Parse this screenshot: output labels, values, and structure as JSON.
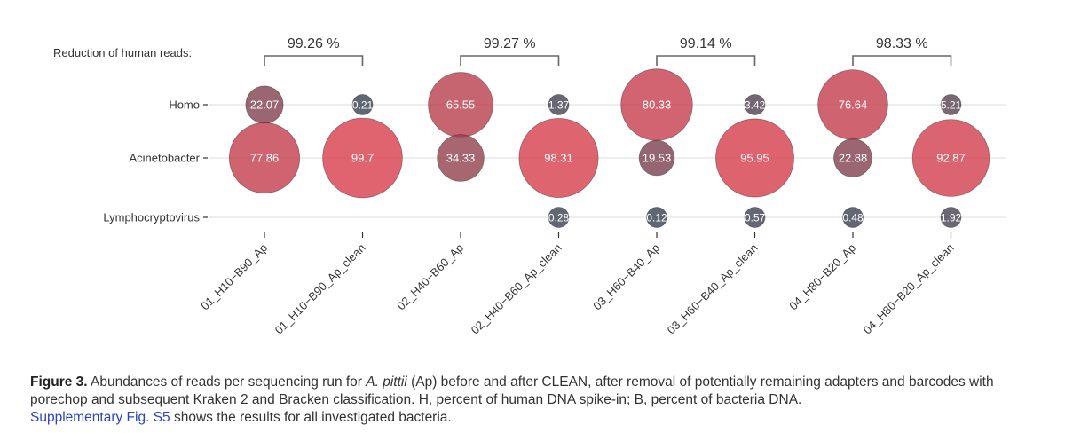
{
  "chart_data": {
    "type": "bubble",
    "reduction_label": "Reduction of human reads:",
    "runs": [
      "01_H10−B90_Ap",
      "01_H10−B90_Ap_clean",
      "02_H40−B60_Ap",
      "02_H40−B60_Ap_clean",
      "03_H60−B40_Ap",
      "03_H60−B40_Ap_clean",
      "04_H80−B20_Ap",
      "04_H80−B20_Ap_clean"
    ],
    "taxa": [
      "Homo",
      "Acinetobacter",
      "Lymphocryptovirus"
    ],
    "values": [
      [
        22.07,
        77.86,
        null
      ],
      [
        0.21,
        99.7,
        null
      ],
      [
        65.55,
        34.33,
        null
      ],
      [
        1.37,
        98.31,
        0.28
      ],
      [
        80.33,
        19.53,
        0.12
      ],
      [
        3.42,
        95.95,
        0.57
      ],
      [
        76.64,
        22.88,
        0.48
      ],
      [
        5.21,
        92.87,
        1.92
      ]
    ],
    "value_labels": [
      [
        "22.07",
        "77.86",
        ""
      ],
      [
        "0.21",
        "99.7",
        ""
      ],
      [
        "65.55",
        "34.33",
        ""
      ],
      [
        "1.37",
        "98.31",
        "0.28"
      ],
      [
        "80.33",
        "19.53",
        "0.12"
      ],
      [
        "3.42",
        "95.95",
        "0.57"
      ],
      [
        "76.64",
        "22.88",
        "0.48"
      ],
      [
        "5.21",
        "92.87",
        "1.92"
      ]
    ],
    "reductions": [
      {
        "label": "99.26 %",
        "runs": [
          0,
          1
        ]
      },
      {
        "label": "99.27 %",
        "runs": [
          2,
          3
        ]
      },
      {
        "label": "99.14 %",
        "runs": [
          4,
          5
        ]
      },
      {
        "label": "98.33 %",
        "runs": [
          6,
          7
        ]
      }
    ],
    "color_low": "#364656",
    "color_high": "#d8424f",
    "grid_color": "#e3e3e3"
  },
  "caption": {
    "figure_label": "Figure 3.",
    "text_part1": " Abundances of reads per sequencing run for ",
    "species": "A. pittii",
    "text_part2": " (Ap) before and after CLEAN, after removal of potentially remaining adapters and barcodes with porechop and subsequent Kraken 2 and Bracken classification. H, percent of human DNA spike-in; B, percent of bacteria DNA.",
    "link_text": "Supplementary Fig. S5",
    "text_part3": " shows the results for all investigated bacteria."
  }
}
